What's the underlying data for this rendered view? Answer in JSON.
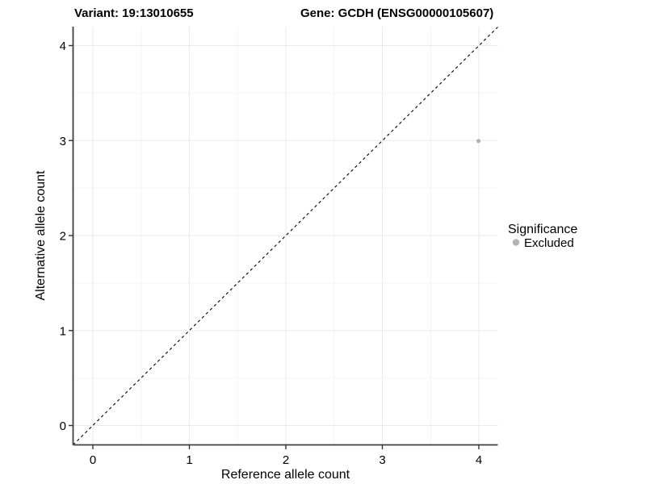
{
  "header": {
    "variant_title": "Variant: 19:13010655",
    "gene_title": "Gene: GCDH (ENSG00000105607)"
  },
  "chart_data": {
    "type": "scatter",
    "title": "Variant: 19:13010655   Gene: GCDH (ENSG00000105607)",
    "xlabel": "Reference allele count",
    "ylabel": "Alternative allele count",
    "xlim": [
      -0.2,
      4.2
    ],
    "ylim": [
      -0.2,
      4.2
    ],
    "xticks": [
      0,
      1,
      2,
      3,
      4
    ],
    "yticks": [
      0,
      1,
      2,
      3,
      4
    ],
    "grid": "major at integers, minor at halves, light gray on white",
    "legend_position": "right, outside panel",
    "series": [
      {
        "name": "Excluded",
        "color": "#b3b3b3",
        "points": [
          [
            4,
            3
          ]
        ]
      }
    ],
    "reference_line": {
      "kind": "identity y=x",
      "style": "dashed",
      "color": "#000000"
    },
    "legend": {
      "title": "Significance",
      "items": [
        {
          "label": "Excluded",
          "color": "#b3b3b3"
        }
      ]
    }
  },
  "colors": {
    "background": "#ffffff",
    "grid_major": "#e9e9e9",
    "grid_minor": "#f4f4f4",
    "axis_line": "#3f3f3f",
    "text": "#000000",
    "excluded_point": "#b3b3b3"
  }
}
